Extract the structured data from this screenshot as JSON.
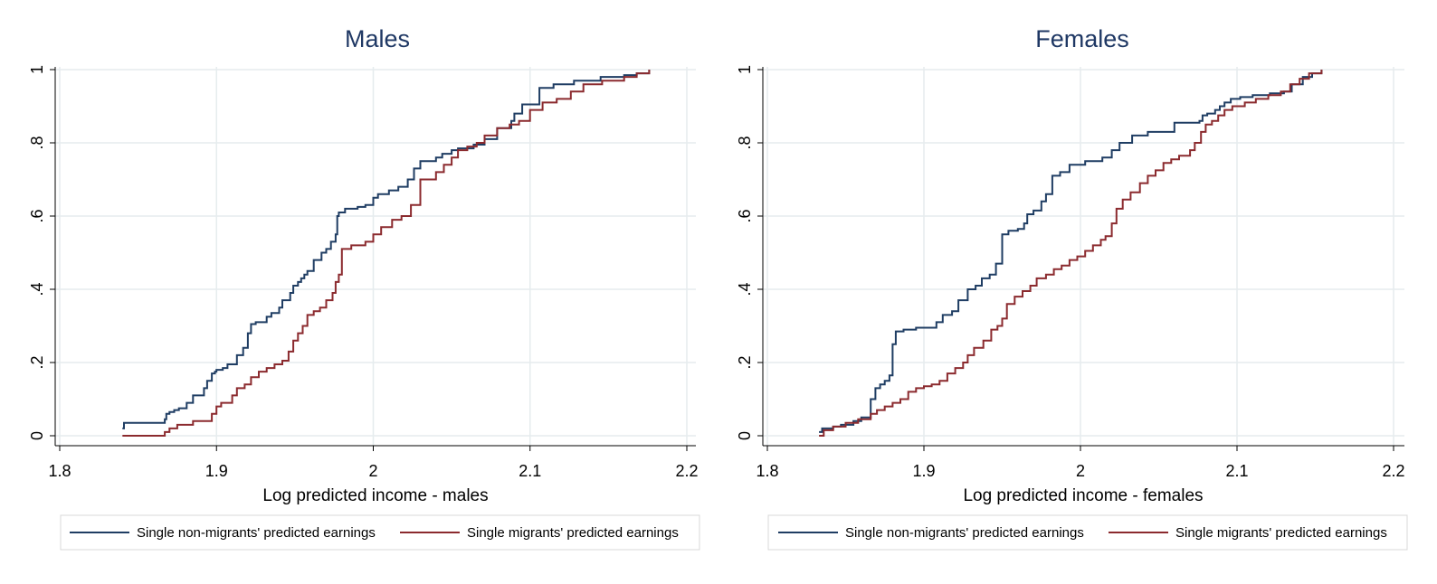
{
  "colors": {
    "non_migrants": "#1f3d63",
    "migrants": "#8b2a2e",
    "grid": "#e6ecee",
    "axis": "#000000",
    "title": "#1f3864"
  },
  "chart_data": [
    {
      "type": "line",
      "title": "Males",
      "xlabel": "Log predicted income - males",
      "ylabel": "",
      "xlim": [
        1.8,
        2.2
      ],
      "ylim": [
        0,
        1
      ],
      "xticks": [
        "1.8",
        "1.9",
        "2",
        "2.1",
        "2.2"
      ],
      "yticks": [
        "0",
        ".2",
        ".4",
        ".6",
        ".8",
        "1"
      ],
      "grid": true,
      "legend_position": "bottom",
      "series": [
        {
          "name": "Single non-migrants' predicted earnings",
          "step": true,
          "x": [
            1.84,
            1.841,
            1.867,
            1.868,
            1.87,
            1.873,
            1.876,
            1.881,
            1.885,
            1.892,
            1.894,
            1.897,
            1.899,
            1.9,
            1.904,
            1.907,
            1.913,
            1.917,
            1.92,
            1.922,
            1.925,
            1.932,
            1.935,
            1.94,
            1.942,
            1.947,
            1.949,
            1.952,
            1.954,
            1.956,
            1.958,
            1.962,
            1.967,
            1.97,
            1.973,
            1.976,
            1.977,
            1.978,
            1.982,
            1.99,
            1.995,
            2.0,
            2.003,
            2.01,
            2.016,
            2.022,
            2.026,
            2.03,
            2.04,
            2.044,
            2.05,
            2.054,
            2.064,
            2.071,
            2.079,
            2.088,
            2.09,
            2.095,
            2.106,
            2.115,
            2.128,
            2.145,
            2.16,
            2.168,
            2.176
          ],
          "y": [
            0.02,
            0.035,
            0.045,
            0.06,
            0.065,
            0.07,
            0.075,
            0.09,
            0.11,
            0.13,
            0.15,
            0.17,
            0.175,
            0.18,
            0.185,
            0.195,
            0.22,
            0.24,
            0.28,
            0.305,
            0.31,
            0.325,
            0.335,
            0.35,
            0.37,
            0.39,
            0.41,
            0.42,
            0.43,
            0.44,
            0.45,
            0.48,
            0.5,
            0.51,
            0.53,
            0.55,
            0.6,
            0.61,
            0.62,
            0.625,
            0.63,
            0.65,
            0.66,
            0.67,
            0.68,
            0.7,
            0.73,
            0.75,
            0.76,
            0.77,
            0.78,
            0.785,
            0.795,
            0.81,
            0.84,
            0.86,
            0.88,
            0.905,
            0.95,
            0.96,
            0.97,
            0.98,
            0.985,
            0.99,
            1.0
          ]
        },
        {
          "name": "Single migrants' predicted earnings",
          "step": true,
          "x": [
            1.84,
            1.867,
            1.87,
            1.875,
            1.885,
            1.897,
            1.9,
            1.903,
            1.91,
            1.913,
            1.918,
            1.922,
            1.927,
            1.932,
            1.937,
            1.942,
            1.946,
            1.949,
            1.952,
            1.955,
            1.958,
            1.962,
            1.966,
            1.97,
            1.974,
            1.976,
            1.978,
            1.98,
            1.986,
            1.995,
            2.0,
            2.005,
            2.012,
            2.018,
            2.024,
            2.03,
            2.04,
            2.045,
            2.05,
            2.054,
            2.06,
            2.066,
            2.071,
            2.079,
            2.087,
            2.093,
            2.1,
            2.108,
            2.117,
            2.126,
            2.134,
            2.146,
            2.16,
            2.168,
            2.176
          ],
          "y": [
            0.0,
            0.01,
            0.02,
            0.03,
            0.04,
            0.06,
            0.08,
            0.09,
            0.11,
            0.13,
            0.14,
            0.16,
            0.175,
            0.185,
            0.195,
            0.205,
            0.23,
            0.26,
            0.28,
            0.3,
            0.33,
            0.34,
            0.35,
            0.37,
            0.39,
            0.42,
            0.44,
            0.51,
            0.52,
            0.53,
            0.55,
            0.57,
            0.59,
            0.6,
            0.63,
            0.7,
            0.72,
            0.74,
            0.76,
            0.78,
            0.79,
            0.8,
            0.82,
            0.84,
            0.85,
            0.86,
            0.89,
            0.91,
            0.92,
            0.94,
            0.96,
            0.97,
            0.98,
            0.99,
            1.0
          ]
        }
      ]
    },
    {
      "type": "line",
      "title": "Females",
      "xlabel": "Log predicted income - females",
      "ylabel": "",
      "xlim": [
        1.8,
        2.2
      ],
      "ylim": [
        0,
        1
      ],
      "xticks": [
        "1.8",
        "1.9",
        "2",
        "2.1",
        "2.2"
      ],
      "yticks": [
        "0",
        ".2",
        ".4",
        ".6",
        ".8",
        "1"
      ],
      "grid": true,
      "legend_position": "bottom",
      "series": [
        {
          "name": "Single non-migrants' predicted earnings",
          "step": true,
          "x": [
            1.833,
            1.835,
            1.842,
            1.847,
            1.855,
            1.86,
            1.866,
            1.869,
            1.872,
            1.875,
            1.878,
            1.88,
            1.882,
            1.887,
            1.895,
            1.908,
            1.912,
            1.918,
            1.922,
            1.928,
            1.933,
            1.937,
            1.942,
            1.946,
            1.95,
            1.954,
            1.96,
            1.964,
            1.966,
            1.97,
            1.975,
            1.978,
            1.982,
            1.987,
            1.993,
            2.003,
            2.014,
            2.02,
            2.025,
            2.033,
            2.043,
            2.06,
            2.076,
            2.078,
            2.081,
            2.086,
            2.089,
            2.092,
            2.096,
            2.102,
            2.11,
            2.121,
            2.13,
            2.135,
            2.142,
            2.148,
            2.154
          ],
          "y": [
            0.01,
            0.02,
            0.025,
            0.03,
            0.04,
            0.05,
            0.1,
            0.13,
            0.14,
            0.15,
            0.165,
            0.25,
            0.285,
            0.29,
            0.295,
            0.31,
            0.33,
            0.34,
            0.37,
            0.4,
            0.41,
            0.43,
            0.44,
            0.47,
            0.55,
            0.56,
            0.565,
            0.58,
            0.605,
            0.615,
            0.64,
            0.66,
            0.71,
            0.72,
            0.74,
            0.75,
            0.76,
            0.78,
            0.8,
            0.82,
            0.83,
            0.855,
            0.86,
            0.875,
            0.88,
            0.89,
            0.9,
            0.91,
            0.92,
            0.925,
            0.93,
            0.935,
            0.94,
            0.96,
            0.98,
            0.99,
            1.0
          ]
        },
        {
          "name": "Single migrants' predicted earnings",
          "step": true,
          "x": [
            1.833,
            1.836,
            1.842,
            1.85,
            1.858,
            1.866,
            1.87,
            1.875,
            1.88,
            1.885,
            1.89,
            1.895,
            1.9,
            1.905,
            1.91,
            1.915,
            1.92,
            1.925,
            1.928,
            1.932,
            1.938,
            1.943,
            1.947,
            1.95,
            1.953,
            1.958,
            1.963,
            1.968,
            1.972,
            1.978,
            1.983,
            1.988,
            1.993,
            1.998,
            2.003,
            2.008,
            2.013,
            2.016,
            2.02,
            2.023,
            2.027,
            2.032,
            2.038,
            2.043,
            2.048,
            2.053,
            2.058,
            2.063,
            2.07,
            2.073,
            2.077,
            2.08,
            2.084,
            2.088,
            2.092,
            2.097,
            2.105,
            2.112,
            2.12,
            2.128,
            2.134,
            2.14,
            2.146,
            2.154
          ],
          "y": [
            0.0,
            0.015,
            0.025,
            0.035,
            0.045,
            0.06,
            0.07,
            0.08,
            0.09,
            0.1,
            0.12,
            0.13,
            0.135,
            0.14,
            0.15,
            0.17,
            0.185,
            0.2,
            0.22,
            0.24,
            0.26,
            0.29,
            0.3,
            0.32,
            0.36,
            0.38,
            0.395,
            0.41,
            0.43,
            0.44,
            0.455,
            0.465,
            0.48,
            0.49,
            0.505,
            0.52,
            0.535,
            0.545,
            0.58,
            0.62,
            0.645,
            0.665,
            0.69,
            0.71,
            0.725,
            0.745,
            0.755,
            0.765,
            0.78,
            0.8,
            0.83,
            0.85,
            0.86,
            0.875,
            0.89,
            0.9,
            0.91,
            0.92,
            0.93,
            0.94,
            0.96,
            0.975,
            0.99,
            1.0
          ]
        }
      ]
    }
  ]
}
